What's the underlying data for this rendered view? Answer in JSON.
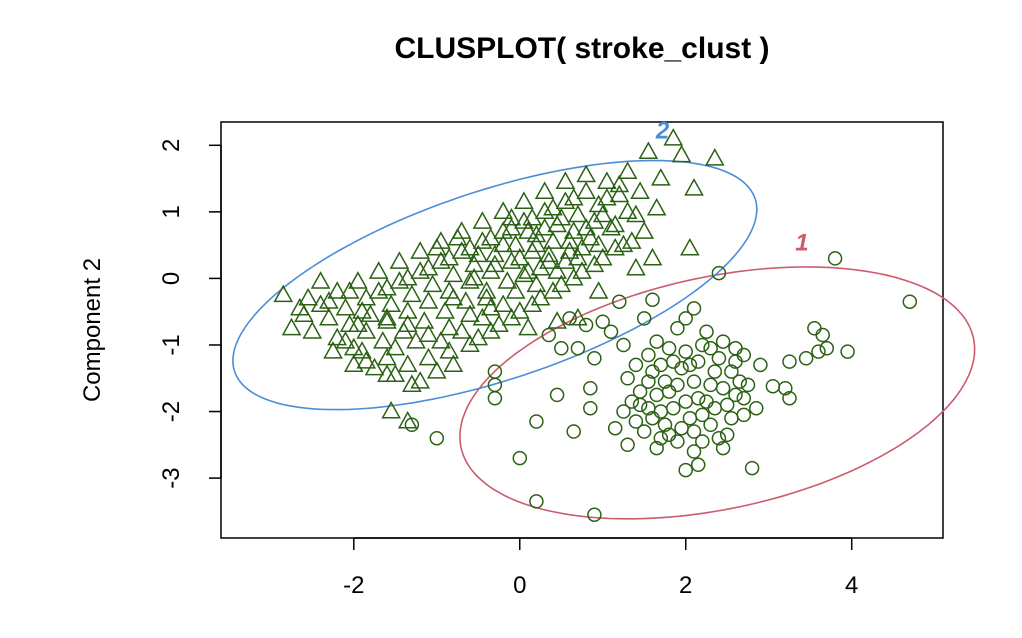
{
  "chart_data": {
    "type": "scatter",
    "title": "CLUSPLOT( stroke_clust )",
    "xlabel": "",
    "ylabel": "Component 2",
    "xlim": [
      -3.6,
      5.1
    ],
    "ylim": [
      -3.9,
      2.35
    ],
    "x_ticks": [
      -2,
      0,
      2,
      4
    ],
    "y_ticks": [
      -3,
      -2,
      -1,
      0,
      1,
      2
    ],
    "point_color": "#2b6114",
    "clusters": [
      {
        "label": "1",
        "marker": "circle",
        "ellipse_color": "#cd5b6e",
        "ellipse": {
          "cx": 2.38,
          "cy": -1.72,
          "rx": 3.2,
          "ry": 1.72,
          "angle_deg": 17
        },
        "label_pos": [
          3.4,
          0.42
        ],
        "points": [
          [
            4.7,
            -0.35
          ],
          [
            3.8,
            0.3
          ],
          [
            2.4,
            0.08
          ],
          [
            2.1,
            -0.45
          ],
          [
            1.5,
            -0.6
          ],
          [
            1.6,
            -0.32
          ],
          [
            1.2,
            -0.35
          ],
          [
            3.55,
            -0.75
          ],
          [
            3.65,
            -0.85
          ],
          [
            3.6,
            -1.1
          ],
          [
            3.45,
            -1.2
          ],
          [
            3.7,
            -1.05
          ],
          [
            3.95,
            -1.1
          ],
          [
            3.25,
            -1.25
          ],
          [
            2.9,
            -1.3
          ],
          [
            2.7,
            -1.15
          ],
          [
            2.6,
            -1.25
          ],
          [
            3.2,
            -1.65
          ],
          [
            3.25,
            -1.8
          ],
          [
            3.05,
            -1.62
          ],
          [
            2.8,
            -2.85
          ],
          [
            2.0,
            -2.88
          ],
          [
            2.15,
            -2.8
          ],
          [
            2.1,
            -2.6
          ],
          [
            2.5,
            -2.35
          ],
          [
            2.45,
            -2.55
          ],
          [
            0.9,
            -3.55
          ],
          [
            0.2,
            -3.35
          ],
          [
            0.0,
            -2.7
          ],
          [
            -1.3,
            -2.2
          ],
          [
            -1.0,
            -2.4
          ],
          [
            -0.3,
            -1.8
          ],
          [
            -0.3,
            -1.6
          ],
          [
            -0.3,
            -1.4
          ],
          [
            0.45,
            -1.75
          ],
          [
            0.2,
            -2.15
          ],
          [
            0.65,
            -2.3
          ],
          [
            0.85,
            -1.95
          ],
          [
            0.85,
            -1.65
          ],
          [
            1.15,
            -2.25
          ],
          [
            1.3,
            -2.5
          ],
          [
            1.45,
            -1.9
          ],
          [
            1.3,
            -1.5
          ],
          [
            1.25,
            -1.0
          ],
          [
            1.1,
            -0.8
          ],
          [
            0.9,
            -1.2
          ],
          [
            0.7,
            -1.05
          ],
          [
            0.5,
            -1.05
          ],
          [
            0.35,
            -0.85
          ],
          [
            1.4,
            -1.3
          ],
          [
            1.55,
            -1.55
          ],
          [
            1.6,
            -1.4
          ],
          [
            1.65,
            -1.75
          ],
          [
            1.7,
            -2.0
          ],
          [
            1.75,
            -2.2
          ],
          [
            1.8,
            -2.35
          ],
          [
            1.85,
            -1.95
          ],
          [
            1.9,
            -1.6
          ],
          [
            1.95,
            -1.35
          ],
          [
            2.0,
            -1.1
          ],
          [
            2.05,
            -1.3
          ],
          [
            2.1,
            -1.55
          ],
          [
            2.15,
            -1.8
          ],
          [
            2.2,
            -2.05
          ],
          [
            2.25,
            -1.85
          ],
          [
            2.3,
            -1.6
          ],
          [
            2.35,
            -1.4
          ],
          [
            2.4,
            -1.2
          ],
          [
            2.45,
            -1.65
          ],
          [
            2.5,
            -1.9
          ],
          [
            2.55,
            -2.1
          ],
          [
            2.6,
            -1.75
          ],
          [
            2.65,
            -1.55
          ],
          [
            2.7,
            -1.8
          ],
          [
            2.75,
            -1.6
          ],
          [
            1.6,
            -2.1
          ],
          [
            1.7,
            -2.4
          ],
          [
            1.95,
            -2.25
          ],
          [
            2.05,
            -2.1
          ],
          [
            2.3,
            -2.2
          ],
          [
            1.75,
            -1.55
          ],
          [
            1.85,
            -1.25
          ],
          [
            2.25,
            -0.8
          ],
          [
            2.2,
            -1.0
          ],
          [
            1.5,
            -2.3
          ],
          [
            1.4,
            -2.15
          ],
          [
            1.45,
            -1.7
          ],
          [
            1.55,
            -1.95
          ],
          [
            1.8,
            -1.7
          ],
          [
            2.35,
            -1.95
          ],
          [
            2.4,
            -2.4
          ],
          [
            2.0,
            -0.6
          ],
          [
            1.9,
            -0.75
          ],
          [
            2.3,
            -1.05
          ],
          [
            2.55,
            -1.4
          ],
          [
            1.65,
            -0.95
          ],
          [
            1.8,
            -1.05
          ],
          [
            1.7,
            -1.3
          ],
          [
            1.55,
            -1.15
          ],
          [
            2.15,
            -1.25
          ],
          [
            2.45,
            -0.95
          ],
          [
            2.6,
            -1.05
          ],
          [
            2.0,
            -1.85
          ],
          [
            2.1,
            -2.3
          ],
          [
            1.35,
            -1.85
          ],
          [
            1.25,
            -2.0
          ],
          [
            1.65,
            -2.55
          ],
          [
            1.9,
            -2.45
          ],
          [
            2.2,
            -2.45
          ],
          [
            2.7,
            -2.05
          ],
          [
            2.85,
            -1.95
          ],
          [
            1.0,
            -0.65
          ],
          [
            0.8,
            -0.7
          ],
          [
            0.6,
            -0.6
          ]
        ]
      },
      {
        "label": "2",
        "marker": "triangle",
        "ellipse_color": "#4b8ed8",
        "ellipse": {
          "cx": -0.3,
          "cy": -0.1,
          "rx": 3.4,
          "ry": 1.38,
          "angle_deg": 24
        },
        "label_pos": [
          1.72,
          2.1
        ],
        "points": [
          [
            1.85,
            2.1
          ],
          [
            2.35,
            1.8
          ],
          [
            1.55,
            1.9
          ],
          [
            1.95,
            1.85
          ],
          [
            2.1,
            1.35
          ],
          [
            1.7,
            1.5
          ],
          [
            1.65,
            1.05
          ],
          [
            2.05,
            0.45
          ],
          [
            1.6,
            0.3
          ],
          [
            1.4,
            0.15
          ],
          [
            0.95,
            -0.2
          ],
          [
            0.7,
            -0.6
          ],
          [
            0.45,
            -0.65
          ],
          [
            0.1,
            -0.75
          ],
          [
            -0.8,
            -1.3
          ],
          [
            -1.0,
            -1.4
          ],
          [
            -1.3,
            -1.6
          ],
          [
            -1.55,
            -2.0
          ],
          [
            -1.35,
            -2.15
          ],
          [
            -1.6,
            -1.45
          ],
          [
            -1.85,
            -1.25
          ],
          [
            -2.0,
            -1.05
          ],
          [
            -2.2,
            -0.9
          ],
          [
            -2.5,
            -0.8
          ],
          [
            -2.75,
            -0.75
          ],
          [
            -2.6,
            -0.55
          ],
          [
            -2.85,
            -0.25
          ],
          [
            -2.55,
            -0.3
          ],
          [
            -2.3,
            -0.35
          ],
          [
            -2.05,
            -0.2
          ],
          [
            -2.4,
            -0.05
          ],
          [
            -1.9,
            -0.5
          ],
          [
            -1.6,
            -0.6
          ],
          [
            -1.35,
            -0.7
          ],
          [
            -1.1,
            -0.85
          ],
          [
            -0.85,
            -0.75
          ],
          [
            -0.6,
            -0.55
          ],
          [
            -0.35,
            -0.45
          ],
          [
            -1.7,
            -0.2
          ],
          [
            -1.45,
            -0.05
          ],
          [
            -1.2,
            0.1
          ],
          [
            -0.95,
            0.25
          ],
          [
            -0.7,
            0.4
          ],
          [
            -0.45,
            0.55
          ],
          [
            -0.2,
            0.7
          ],
          [
            0.05,
            0.85
          ],
          [
            0.3,
            1.0
          ],
          [
            0.55,
            1.15
          ],
          [
            0.8,
            1.3
          ],
          [
            1.05,
            1.45
          ],
          [
            1.3,
            1.6
          ],
          [
            1.2,
            1.25
          ],
          [
            0.95,
            1.1
          ],
          [
            0.7,
            0.95
          ],
          [
            0.45,
            0.8
          ],
          [
            0.2,
            0.65
          ],
          [
            -0.05,
            0.5
          ],
          [
            -0.3,
            0.35
          ],
          [
            -0.55,
            0.2
          ],
          [
            -0.8,
            0.05
          ],
          [
            -1.05,
            -0.1
          ],
          [
            -1.3,
            -0.25
          ],
          [
            -1.55,
            -0.4
          ],
          [
            -1.8,
            -0.55
          ],
          [
            -2.05,
            -0.7
          ],
          [
            -2.3,
            -0.6
          ],
          [
            -2.1,
            -0.45
          ],
          [
            -1.85,
            -0.3
          ],
          [
            -1.6,
            -0.15
          ],
          [
            -1.35,
            0.0
          ],
          [
            -1.1,
            0.15
          ],
          [
            -0.85,
            0.3
          ],
          [
            -0.6,
            0.45
          ],
          [
            -0.35,
            0.6
          ],
          [
            -0.1,
            0.75
          ],
          [
            0.15,
            0.9
          ],
          [
            0.4,
            1.05
          ],
          [
            0.65,
            1.2
          ],
          [
            0.9,
            0.85
          ],
          [
            0.65,
            0.7
          ],
          [
            0.4,
            0.55
          ],
          [
            0.15,
            0.4
          ],
          [
            -0.1,
            0.25
          ],
          [
            -0.35,
            0.1
          ],
          [
            -0.6,
            -0.05
          ],
          [
            -0.85,
            -0.2
          ],
          [
            -1.1,
            -0.35
          ],
          [
            -1.35,
            -0.5
          ],
          [
            -1.6,
            -0.65
          ],
          [
            -1.85,
            -0.8
          ],
          [
            -2.1,
            -0.95
          ],
          [
            -1.95,
            -0.05
          ],
          [
            -1.7,
            0.1
          ],
          [
            -1.45,
            0.25
          ],
          [
            -1.2,
            0.4
          ],
          [
            -0.95,
            0.55
          ],
          [
            -0.7,
            0.7
          ],
          [
            -0.45,
            0.85
          ],
          [
            -0.2,
            1.0
          ],
          [
            0.05,
            1.15
          ],
          [
            0.3,
            1.3
          ],
          [
            0.55,
            1.45
          ],
          [
            0.8,
            1.55
          ],
          [
            1.05,
            1.2
          ],
          [
            1.3,
            1.0
          ],
          [
            1.1,
            0.75
          ],
          [
            0.85,
            0.6
          ],
          [
            0.6,
            0.4
          ],
          [
            0.35,
            0.25
          ],
          [
            0.1,
            0.1
          ],
          [
            -0.15,
            -0.05
          ],
          [
            -0.4,
            -0.2
          ],
          [
            -0.65,
            -0.35
          ],
          [
            -0.9,
            -0.5
          ],
          [
            -1.15,
            -0.65
          ],
          [
            -1.4,
            -0.8
          ],
          [
            -1.65,
            -0.95
          ],
          [
            -1.9,
            -1.1
          ],
          [
            -0.5,
            -0.9
          ],
          [
            -0.25,
            -0.7
          ],
          [
            0.0,
            -0.5
          ],
          [
            0.25,
            -0.3
          ],
          [
            0.5,
            -0.1
          ],
          [
            0.75,
            0.1
          ],
          [
            1.0,
            0.3
          ],
          [
            1.25,
            0.5
          ],
          [
            1.5,
            0.7
          ],
          [
            1.4,
            0.95
          ],
          [
            1.15,
            0.45
          ],
          [
            0.9,
            0.2
          ],
          [
            0.65,
            0.0
          ],
          [
            0.4,
            -0.2
          ],
          [
            0.15,
            -0.4
          ],
          [
            -0.1,
            -0.6
          ],
          [
            -0.35,
            -0.8
          ],
          [
            -0.6,
            -1.0
          ],
          [
            -0.85,
            -1.1
          ],
          [
            -1.1,
            -1.2
          ],
          [
            -1.35,
            -1.3
          ],
          [
            -1.6,
            -1.2
          ],
          [
            -2.4,
            -0.4
          ],
          [
            -2.65,
            -0.45
          ],
          [
            -2.2,
            -0.2
          ],
          [
            -1.95,
            -0.7
          ],
          [
            0.0,
            0.3
          ],
          [
            0.2,
            0.5
          ],
          [
            -0.2,
            0.5
          ],
          [
            0.1,
            0.7
          ],
          [
            -0.1,
            0.9
          ],
          [
            0.3,
            0.75
          ],
          [
            0.5,
            0.9
          ],
          [
            -0.3,
            0.2
          ],
          [
            -0.5,
            0.35
          ],
          [
            0.35,
            0.35
          ],
          [
            0.6,
            0.55
          ],
          [
            0.8,
            0.75
          ],
          [
            1.0,
            0.95
          ],
          [
            1.2,
            1.4
          ],
          [
            1.45,
            1.3
          ],
          [
            -0.75,
            0.6
          ],
          [
            -1.0,
            0.45
          ],
          [
            -0.55,
            0.0
          ],
          [
            -0.8,
            -0.3
          ],
          [
            -0.4,
            -0.3
          ],
          [
            0.05,
            0.05
          ],
          [
            0.25,
            0.15
          ],
          [
            -0.05,
            -0.2
          ],
          [
            0.55,
            0.25
          ],
          [
            0.75,
            0.45
          ],
          [
            0.95,
            0.5
          ],
          [
            1.15,
            0.8
          ],
          [
            1.35,
            0.55
          ],
          [
            -1.25,
            -0.95
          ],
          [
            -1.5,
            -1.05
          ],
          [
            -1.75,
            -1.35
          ],
          [
            -2.25,
            -1.1
          ],
          [
            -2.0,
            -1.3
          ],
          [
            -1.5,
            -1.45
          ],
          [
            -1.2,
            -1.55
          ],
          [
            -0.95,
            -0.95
          ],
          [
            -0.7,
            -0.8
          ],
          [
            -0.45,
            -0.6
          ],
          [
            -0.2,
            -0.4
          ],
          [
            0.2,
            -0.1
          ],
          [
            0.45,
            0.1
          ],
          [
            0.7,
            0.3
          ]
        ]
      }
    ]
  }
}
